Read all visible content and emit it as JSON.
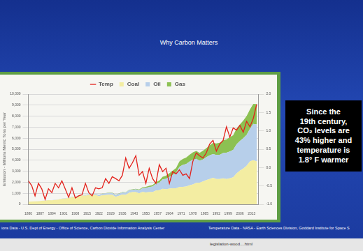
{
  "slide_title": "Why Carbon Matters",
  "chart_data": {
    "type": "line",
    "y_label": "Emission - Millions Metric Tons per Year",
    "x": [
      1880,
      1882,
      1884,
      1886,
      1888,
      1890,
      1892,
      1894,
      1896,
      1898,
      1900,
      1902,
      1904,
      1906,
      1908,
      1910,
      1912,
      1914,
      1916,
      1918,
      1920,
      1922,
      1924,
      1926,
      1928,
      1930,
      1932,
      1934,
      1936,
      1938,
      1940,
      1942,
      1944,
      1946,
      1948,
      1950,
      1952,
      1954,
      1956,
      1958,
      1960,
      1962,
      1964,
      1966,
      1968,
      1970,
      1972,
      1974,
      1976,
      1978,
      1980,
      1982,
      1984,
      1986,
      1988,
      1990,
      1992,
      1994,
      1996,
      1998,
      2000,
      2002,
      2004,
      2006,
      2008,
      2010,
      2012,
      2014,
      2016
    ],
    "series": [
      {
        "name": "Coal",
        "type": "area",
        "color": "#f3eda2",
        "axis": "y",
        "values": [
          230,
          255,
          270,
          275,
          310,
          340,
          360,
          365,
          395,
          430,
          500,
          530,
          570,
          640,
          650,
          780,
          800,
          770,
          860,
          900,
          850,
          730,
          820,
          840,
          870,
          850,
          680,
          780,
          880,
          850,
          1050,
          1100,
          1100,
          1000,
          1120,
          1070,
          1100,
          1100,
          1250,
          1280,
          1410,
          1360,
          1420,
          1450,
          1460,
          1560,
          1580,
          1610,
          1720,
          1800,
          1950,
          1960,
          2070,
          2200,
          2300,
          2400,
          2300,
          2300,
          2350,
          2300,
          2350,
          2450,
          2800,
          3050,
          3250,
          3500,
          3900,
          4000,
          3900
        ]
      },
      {
        "name": "Oil",
        "type": "area",
        "color": "#b7cfea",
        "axis": "y",
        "values": [
          3,
          4,
          5,
          6,
          8,
          10,
          11,
          12,
          14,
          15,
          18,
          22,
          28,
          32,
          38,
          44,
          52,
          58,
          70,
          78,
          95,
          110,
          130,
          150,
          165,
          180,
          160,
          175,
          200,
          210,
          230,
          220,
          260,
          280,
          340,
          420,
          470,
          510,
          600,
          680,
          850,
          950,
          1070,
          1220,
          1400,
          1840,
          2000,
          2050,
          2150,
          2250,
          2180,
          1990,
          2000,
          2080,
          2150,
          2150,
          2170,
          2200,
          2300,
          2380,
          2450,
          2480,
          2650,
          2700,
          2750,
          2800,
          2950,
          3300,
          3350
        ]
      },
      {
        "name": "Gas",
        "type": "area",
        "color": "#8cc152",
        "axis": "y",
        "values": [
          0,
          0,
          1,
          1,
          1,
          1,
          1,
          1,
          1,
          2,
          2,
          2,
          3,
          4,
          5,
          6,
          7,
          8,
          9,
          10,
          10,
          12,
          16,
          20,
          25,
          30,
          26,
          30,
          35,
          38,
          40,
          45,
          55,
          60,
          80,
          100,
          115,
          130,
          160,
          190,
          240,
          280,
          330,
          380,
          430,
          490,
          540,
          580,
          620,
          660,
          710,
          720,
          780,
          820,
          900,
          1020,
          1050,
          1080,
          1180,
          1200,
          1290,
          1330,
          1420,
          1500,
          1600,
          1700,
          1750,
          1820,
          1850
        ]
      },
      {
        "name": "Temp",
        "type": "line",
        "color": "#e3211b",
        "axis": "y2",
        "values": [
          -0.36,
          -0.49,
          -0.77,
          -0.43,
          -0.58,
          -0.87,
          -0.58,
          -0.68,
          -0.43,
          -0.55,
          -0.36,
          -0.58,
          -0.81,
          -0.55,
          -0.83,
          -0.77,
          -0.74,
          -0.43,
          -0.68,
          -0.77,
          -0.55,
          -0.58,
          -0.55,
          -0.3,
          -0.43,
          -0.25,
          -0.3,
          -0.36,
          -0.21,
          0.26,
          -0.02,
          0.13,
          0.32,
          -0.21,
          -0.11,
          -0.43,
          -0.02,
          -0.3,
          -0.43,
          0.08,
          -0.11,
          -0.02,
          -0.43,
          -0.11,
          -0.17,
          -0.06,
          -0.21,
          -0.17,
          -0.3,
          0.17,
          0.4,
          0.32,
          0.26,
          0.4,
          0.64,
          0.74,
          0.45,
          0.64,
          0.74,
          1.11,
          0.83,
          1.08,
          1.02,
          1.15,
          0.96,
          1.26,
          1.11,
          1.34,
          1.72
        ]
      }
    ],
    "xlim": [
      1880,
      2017
    ],
    "xticks": [
      1880,
      1887,
      1894,
      1901,
      1908,
      1915,
      1922,
      1929,
      1936,
      1943,
      1950,
      1957,
      1964,
      1971,
      1978,
      1985,
      1992,
      1999,
      2006,
      2013
    ],
    "ylim": [
      0,
      10000
    ],
    "yticks": [
      0,
      {
        "value": 1000,
        "label": "1,000"
      },
      {
        "value": 2000,
        "label": "2,000"
      },
      {
        "value": 3000,
        "label": "3,000"
      },
      {
        "value": 4000,
        "label": "4,000"
      },
      {
        "value": 5000,
        "label": "5,000"
      },
      {
        "value": 6000,
        "label": "6,000"
      },
      {
        "value": 7000,
        "label": "7,000"
      },
      {
        "value": 8000,
        "label": "8,000"
      },
      {
        "value": 9000,
        "label": "9,000"
      },
      {
        "value": 10000,
        "label": "10,000"
      }
    ],
    "y2lim": [
      -1,
      2
    ],
    "y2ticks": [
      {
        "value": -1,
        "label": "-1.0"
      },
      -0.5,
      {
        "value": 0,
        "label": "0.0"
      },
      0.5,
      {
        "value": 1,
        "label": "1.0"
      },
      1.5,
      {
        "value": 2,
        "label": "2.0"
      }
    ],
    "stacked": true,
    "grid": true,
    "legend": "top"
  },
  "callout": [
    "Since the",
    "19th century,",
    "CO₂ levels are",
    "43% higher and",
    "temperature is",
    "1.8° F warmer"
  ],
  "footer": {
    "left": "ions Data - U.S. Dept of Energy - Office of Science, Carbon Dioxide Information Analysis Center",
    "right": "Temperature Data - NASA - Earth Sciences Division, Goddard Institute for Space S"
  },
  "download_bar": [
    "legislation-wood....html"
  ]
}
